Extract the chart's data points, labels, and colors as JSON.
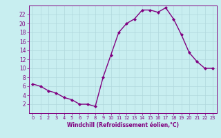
{
  "x": [
    0,
    1,
    2,
    3,
    4,
    5,
    6,
    7,
    8,
    9,
    10,
    11,
    12,
    13,
    14,
    15,
    16,
    17,
    18,
    19,
    20,
    21,
    22,
    23
  ],
  "y": [
    6.5,
    6.0,
    5.0,
    4.5,
    3.5,
    3.0,
    2.0,
    2.0,
    1.5,
    8.0,
    13.0,
    18.0,
    20.0,
    21.0,
    23.0,
    23.0,
    22.5,
    23.5,
    21.0,
    17.5,
    13.5,
    11.5,
    10.0,
    10.0
  ],
  "line_color": "#800080",
  "marker": "D",
  "marker_size": 2.0,
  "bg_color": "#c8eef0",
  "grid_color": "#b0d8dc",
  "xlabel": "Windchill (Refroidissement éolien,°C)",
  "xlabel_color": "#800080",
  "tick_color": "#800080",
  "axis_color": "#800080",
  "ylim": [
    0,
    24
  ],
  "xlim": [
    -0.5,
    23.5
  ],
  "yticks": [
    2,
    4,
    6,
    8,
    10,
    12,
    14,
    16,
    18,
    20,
    22
  ],
  "xticks": [
    0,
    1,
    2,
    3,
    4,
    5,
    6,
    7,
    8,
    9,
    10,
    11,
    12,
    13,
    14,
    15,
    16,
    17,
    18,
    19,
    20,
    21,
    22,
    23
  ],
  "xlabel_fontsize": 5.5,
  "xtick_fontsize": 4.8,
  "ytick_fontsize": 5.5,
  "linewidth": 1.0
}
